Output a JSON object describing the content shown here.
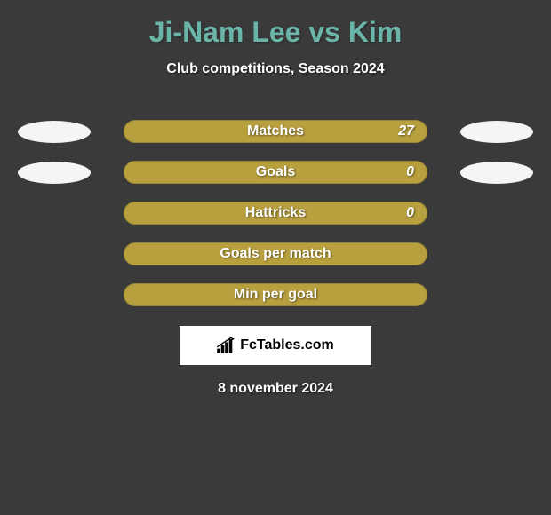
{
  "header": {
    "title": "Ji-Nam Lee vs Kim",
    "subtitle": "Club competitions, Season 2024"
  },
  "stats": [
    {
      "label": "Matches",
      "value": "27",
      "show_left_ellipse": true,
      "show_right_ellipse": true,
      "show_value": true
    },
    {
      "label": "Goals",
      "value": "0",
      "show_left_ellipse": true,
      "show_right_ellipse": true,
      "show_value": true
    },
    {
      "label": "Hattricks",
      "value": "0",
      "show_left_ellipse": false,
      "show_right_ellipse": false,
      "show_value": true
    },
    {
      "label": "Goals per match",
      "value": "",
      "show_left_ellipse": false,
      "show_right_ellipse": false,
      "show_value": false
    },
    {
      "label": "Min per goal",
      "value": "",
      "show_left_ellipse": false,
      "show_right_ellipse": false,
      "show_value": false
    }
  ],
  "footer": {
    "logo_text": "FcTables.com",
    "date": "8 november 2024"
  },
  "colors": {
    "background": "#3a3a3a",
    "title": "#6bb5a8",
    "bar_fill": "#b8a03e",
    "bar_border": "#9a8534",
    "text_white": "#ffffff",
    "ellipse": "#f5f5f5",
    "logo_bg": "#ffffff"
  }
}
